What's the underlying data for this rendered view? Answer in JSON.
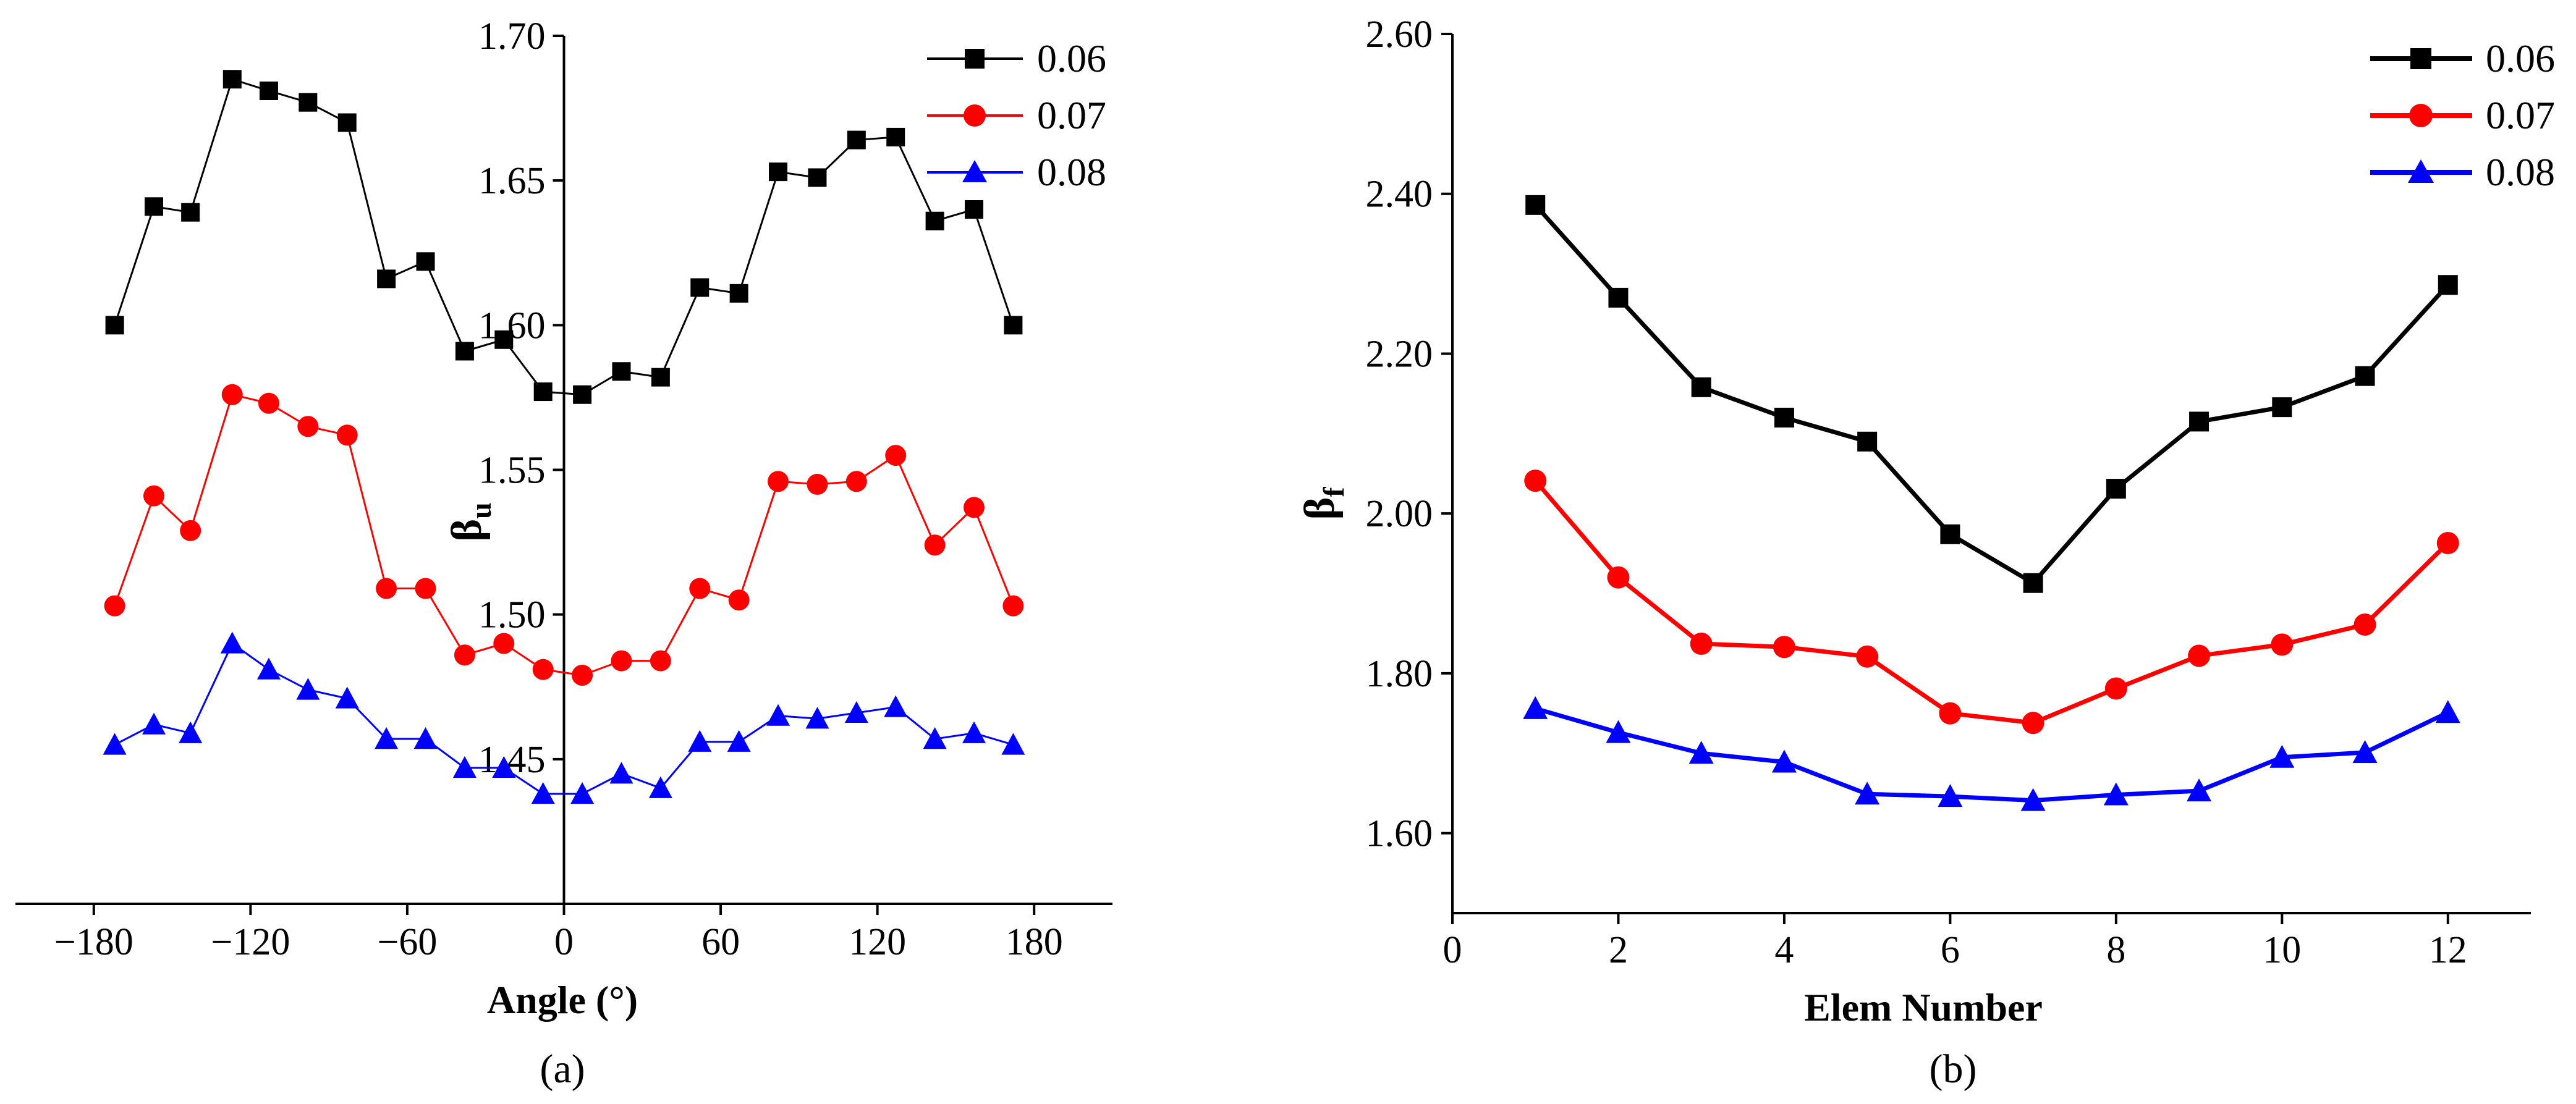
{
  "chart_data": [
    {
      "type": "line",
      "panel_label": "(a)",
      "xlabel": "Angle  (°)",
      "ylabel_main": "β",
      "ylabel_sub": "u",
      "xlim": [
        -210,
        210
      ],
      "ylim": [
        1.4,
        1.7
      ],
      "xticks": [
        -180,
        -120,
        -60,
        0,
        60,
        120,
        180
      ],
      "xtick_labels": [
        "−180",
        "−120",
        "−60",
        "0",
        "60",
        "120",
        "180"
      ],
      "yticks": [
        1.45,
        1.5,
        1.55,
        1.6,
        1.65,
        1.7
      ],
      "ytick_labels": [
        "1.45",
        "1.50",
        "1.55",
        "1.60",
        "1.65",
        "1.70"
      ],
      "y_axis_at_x": 0,
      "legend_position": "top-right",
      "x": [
        -172,
        -157,
        -143,
        -127,
        -113,
        -98,
        -83,
        -68,
        -53,
        -38,
        -23,
        -8,
        7,
        22,
        37,
        52,
        67,
        82,
        97,
        112,
        127,
        142,
        157,
        172
      ],
      "series": [
        {
          "name": "0.06",
          "color": "#000000",
          "marker": "square",
          "values": [
            1.6,
            1.641,
            1.639,
            1.685,
            1.681,
            1.677,
            1.67,
            1.616,
            1.622,
            1.591,
            1.595,
            1.577,
            1.576,
            1.584,
            1.582,
            1.613,
            1.611,
            1.653,
            1.651,
            1.664,
            1.665,
            1.636,
            1.64,
            1.6
          ]
        },
        {
          "name": "0.07",
          "color": "#ff0000",
          "marker": "circle",
          "values": [
            1.503,
            1.541,
            1.529,
            1.576,
            1.573,
            1.565,
            1.562,
            1.509,
            1.509,
            1.486,
            1.49,
            1.481,
            1.479,
            1.484,
            1.484,
            1.509,
            1.505,
            1.546,
            1.545,
            1.546,
            1.555,
            1.524,
            1.537,
            1.503
          ]
        },
        {
          "name": "0.08",
          "color": "#0000ff",
          "marker": "triangle",
          "values": [
            1.455,
            1.462,
            1.459,
            1.49,
            1.481,
            1.474,
            1.471,
            1.457,
            1.457,
            1.447,
            1.447,
            1.438,
            1.438,
            1.445,
            1.44,
            1.456,
            1.456,
            1.465,
            1.464,
            1.466,
            1.468,
            1.457,
            1.459,
            1.455
          ]
        }
      ]
    },
    {
      "type": "line",
      "panel_label": "(b)",
      "xlabel": "Elem Number",
      "ylabel_main": "β",
      "ylabel_sub": "f",
      "xlim": [
        0,
        13
      ],
      "ylim": [
        1.5,
        2.6
      ],
      "xticks": [
        0,
        2,
        4,
        6,
        8,
        10,
        12
      ],
      "xtick_labels": [
        "0",
        "2",
        "4",
        "6",
        "8",
        "10",
        "12"
      ],
      "yticks": [
        1.6,
        1.8,
        2.0,
        2.2,
        2.4,
        2.6
      ],
      "ytick_labels": [
        "1.60",
        "1.80",
        "2.00",
        "2.20",
        "2.40",
        "2.60"
      ],
      "legend_position": "top-right",
      "x": [
        1,
        2,
        3,
        4,
        5,
        6,
        7,
        8,
        9,
        10,
        11,
        12
      ],
      "series": [
        {
          "name": "0.06",
          "color": "#000000",
          "marker": "square",
          "values": [
            2.386,
            2.27,
            2.158,
            2.12,
            2.09,
            1.974,
            1.913,
            2.031,
            2.115,
            2.133,
            2.172,
            2.286
          ]
        },
        {
          "name": "0.07",
          "color": "#ff0000",
          "marker": "circle",
          "values": [
            2.041,
            1.92,
            1.837,
            1.833,
            1.821,
            1.75,
            1.738,
            1.781,
            1.822,
            1.836,
            1.861,
            1.963
          ]
        },
        {
          "name": "0.08",
          "color": "#0000ff",
          "marker": "triangle",
          "values": [
            1.756,
            1.726,
            1.7,
            1.689,
            1.649,
            1.646,
            1.641,
            1.648,
            1.653,
            1.695,
            1.701,
            1.751
          ]
        }
      ]
    }
  ]
}
